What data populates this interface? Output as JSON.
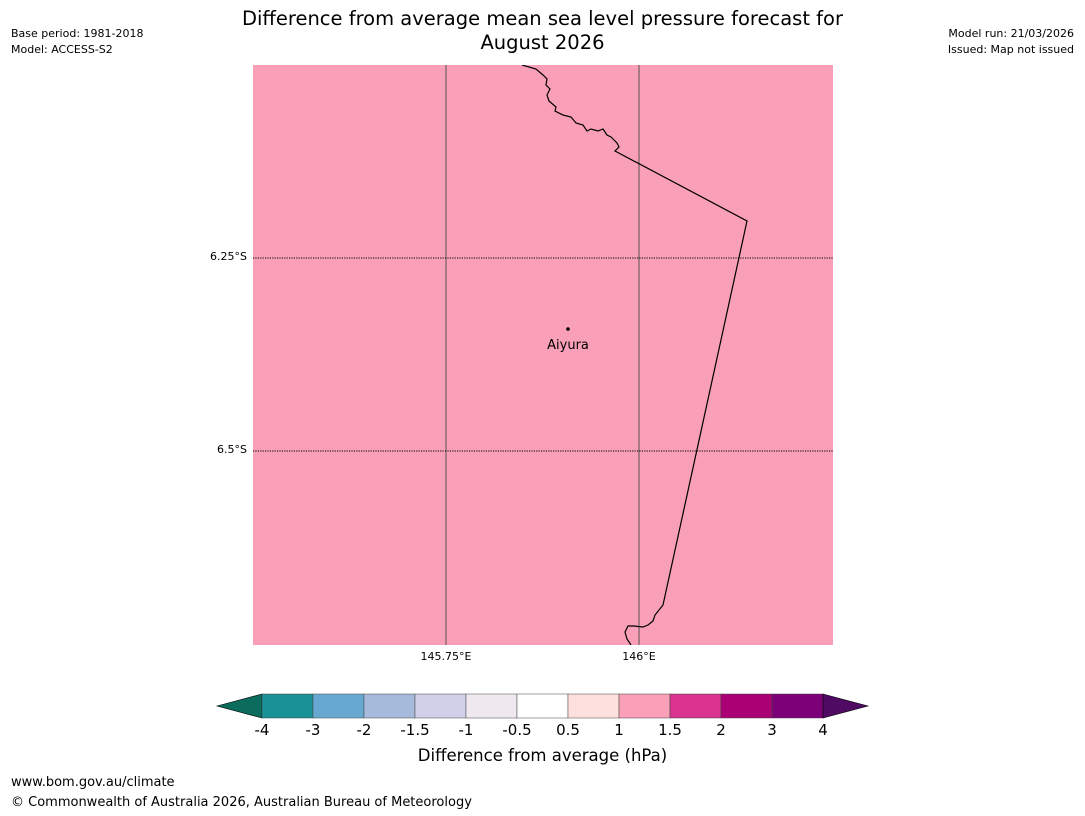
{
  "header": {
    "title_line1": "Difference from average mean sea level pressure forecast for",
    "title_line2": "August 2026",
    "base_period": "Base period: 1981-2018",
    "model": "Model: ACCESS-S2",
    "model_run": "Model run: 21/03/2026",
    "issued": "Issued: Map not issued"
  },
  "map": {
    "fill_color": "#f99fb8",
    "location": {
      "name": "Aiyura",
      "lon": 145.9,
      "lat": -6.35
    },
    "extent": {
      "lon_min": 145.5,
      "lon_max": 146.25,
      "lat_max": -6.0,
      "lat_min": -6.75
    },
    "lat_labels": [
      "6.25°S",
      "6.5°S"
    ],
    "lon_labels": [
      "145.75°E",
      "146°E"
    ]
  },
  "colorbar": {
    "label": "Difference from average (hPa)",
    "ticks": [
      "-4",
      "-3",
      "-2",
      "-1.5",
      "-1",
      "-0.5",
      "0.5",
      "1",
      "1.5",
      "2",
      "3",
      "4"
    ],
    "under_color": "#0b6b5c",
    "over_color": "#4f0a63",
    "colors": [
      "#1a9197",
      "#67a8d0",
      "#a6bbdb",
      "#d0d0e8",
      "#efe8ef",
      "#ffffff",
      "#fde0dd",
      "#f99fb8",
      "#d9328f",
      "#ab0075",
      "#7c0077"
    ]
  },
  "footer": {
    "url": "www.bom.gov.au/climate",
    "copyright": "© Commonwealth of Australia 2026, Australian Bureau of Meteorology"
  }
}
